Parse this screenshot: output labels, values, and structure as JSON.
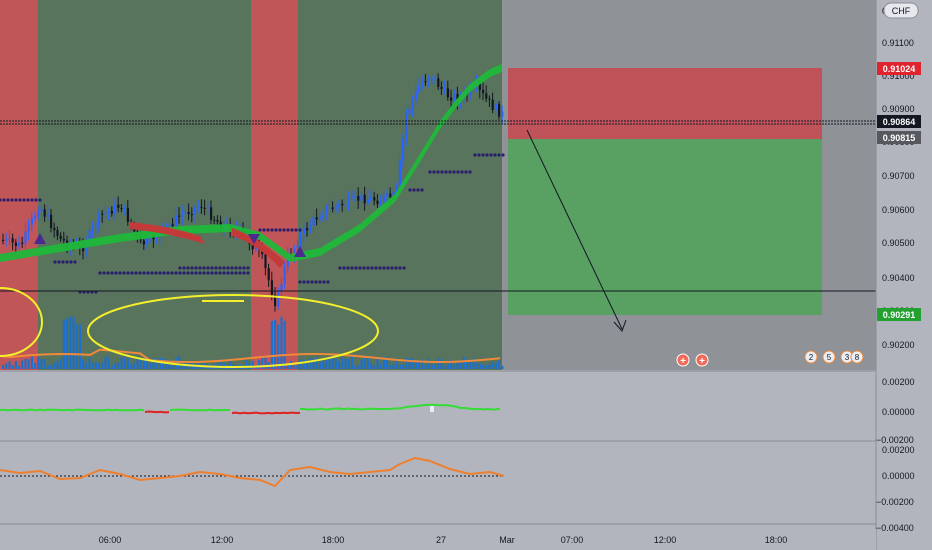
{
  "header": {
    "currency": "CHF"
  },
  "price_axis": {
    "ticks": [
      "0.91100",
      "0.91000",
      "0.90900",
      "0.90800",
      "0.90700",
      "0.90600",
      "0.90500",
      "0.90400",
      "0.90300",
      "0.90200"
    ],
    "top_partial": "0."
  },
  "badges": {
    "stop": "0.91024",
    "last": "0.90864",
    "entry": "0.90815",
    "target": "0.90291"
  },
  "sub1_axis": [
    "0.00200",
    "0.00000",
    "−0.00200"
  ],
  "sub2_axis": [
    "0.00200",
    "0.00000",
    "−0.00200",
    "−0.00400"
  ],
  "time_axis": [
    "06:00",
    "12:00",
    "18:00",
    "27",
    "Mar",
    "07:00",
    "12:00",
    "18:00"
  ],
  "event_markers": {
    "left": [
      "+",
      "+"
    ],
    "right": [
      "2",
      "5",
      "3",
      "8"
    ]
  },
  "colors": {
    "bg_green": "#58745c",
    "bg_red": "#c15658",
    "future_bg": "#8f9296",
    "up": "#2962ff",
    "down": "#131722",
    "ribbon": "#1fb83a",
    "stop_zone": "#c9464f",
    "target_zone": "#4fa35b",
    "volume": "#1e6fc9",
    "volume_ma": "#f08a3a",
    "osc1_up": "#33dd33",
    "osc1_down": "#dd2222",
    "osc2": "#f07f2c"
  },
  "chart_data": {
    "type": "candlestick",
    "symbol_quote": "CHF",
    "y_range": [
      0.9015,
      0.9118
    ],
    "position": {
      "direction": "short",
      "entry": 0.90815,
      "stop": 0.91024,
      "target": 0.90291
    },
    "last_price": 0.90864,
    "horizontal_levels": [
      0.90864,
      0.9037
    ],
    "sub_panel_1_range": [
      -0.002,
      0.002
    ],
    "sub_panel_2_range": [
      -0.004,
      0.002
    ]
  }
}
